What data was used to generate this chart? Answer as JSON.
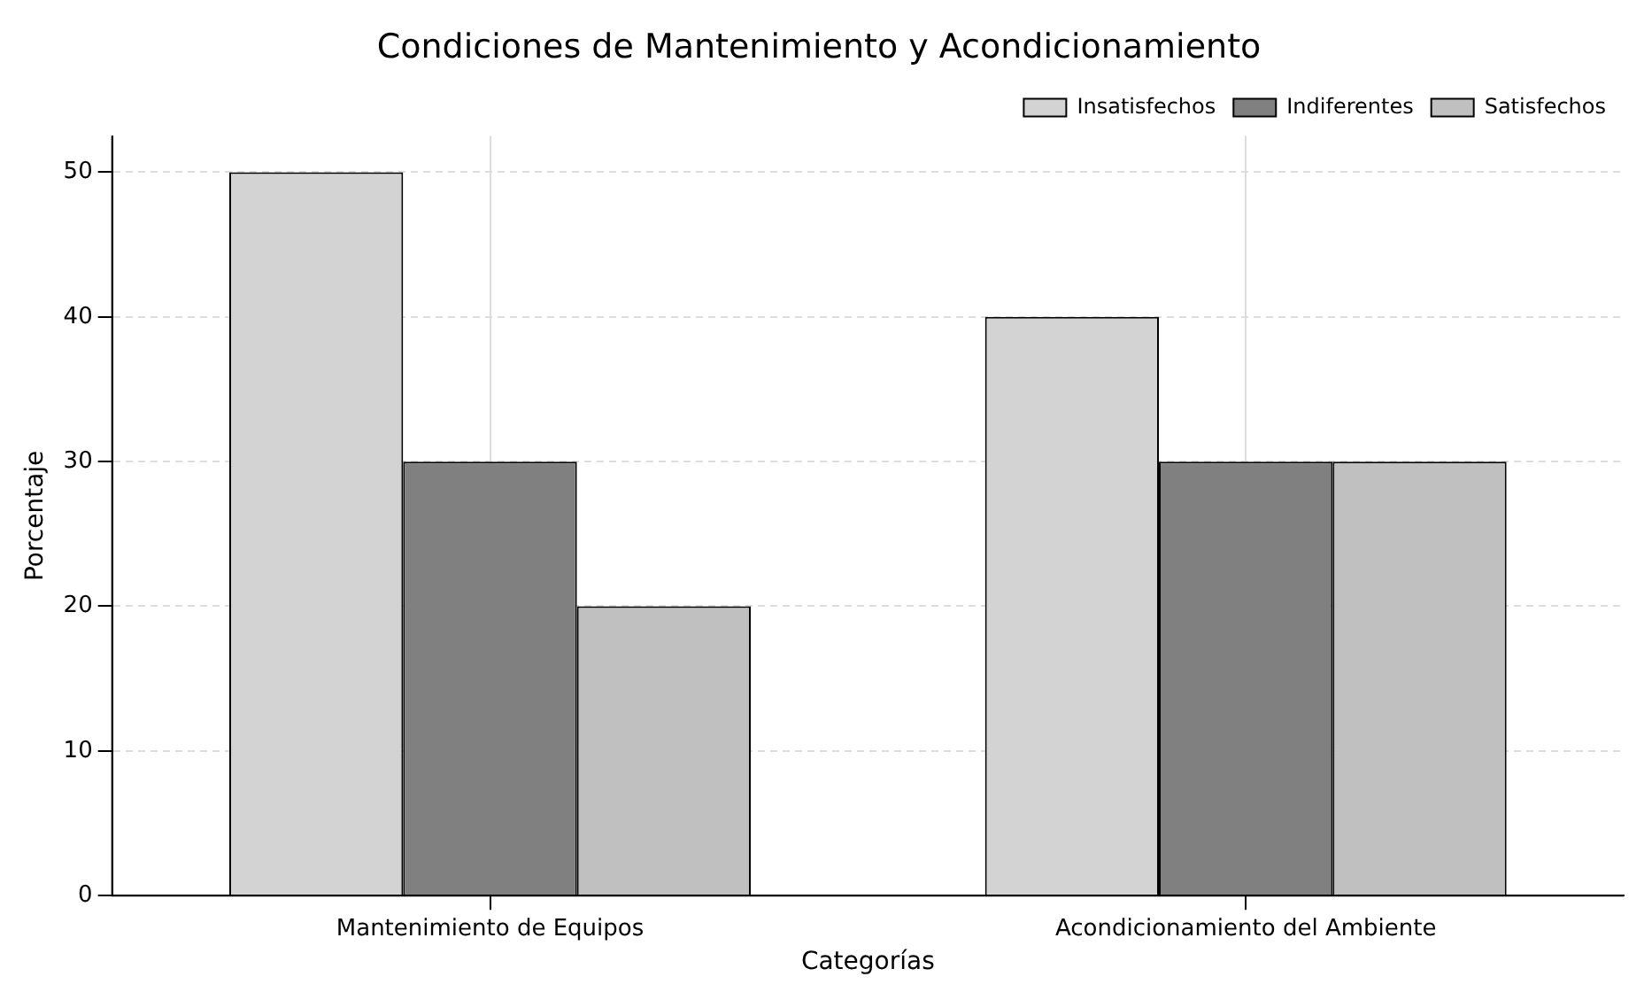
{
  "chart_data": {
    "type": "bar",
    "title": "Condiciones de Mantenimiento y Acondicionamiento",
    "xlabel": "Categorías",
    "ylabel": "Porcentaje",
    "categories": [
      "Mantenimiento de Equipos",
      "Acondicionamiento del Ambiente"
    ],
    "series": [
      {
        "name": "Insatisfechos",
        "color": "#d3d3d3",
        "values": [
          50,
          40
        ]
      },
      {
        "name": "Indiferentes",
        "color": "#808080",
        "values": [
          30,
          30
        ]
      },
      {
        "name": "Satisfechos",
        "color": "#c0c0c0",
        "values": [
          20,
          30
        ]
      }
    ],
    "ylim": [
      0,
      52.5
    ],
    "yticks": [
      0,
      10,
      20,
      30,
      40,
      50
    ],
    "grid": true,
    "legend": "top right"
  }
}
